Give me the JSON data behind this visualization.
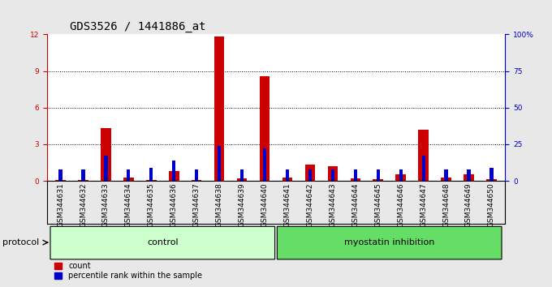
{
  "title": "GDS3526 / 1441886_at",
  "samples": [
    "GSM344631",
    "GSM344632",
    "GSM344633",
    "GSM344634",
    "GSM344635",
    "GSM344636",
    "GSM344637",
    "GSM344638",
    "GSM344639",
    "GSM344640",
    "GSM344641",
    "GSM344642",
    "GSM344643",
    "GSM344644",
    "GSM344645",
    "GSM344646",
    "GSM344647",
    "GSM344648",
    "GSM344649",
    "GSM344650"
  ],
  "count_values": [
    0.05,
    0.05,
    4.3,
    0.3,
    0.1,
    0.8,
    0.05,
    11.8,
    0.2,
    8.6,
    0.3,
    1.3,
    1.2,
    0.2,
    0.15,
    0.5,
    4.2,
    0.3,
    0.5,
    0.15
  ],
  "percentile_values": [
    8,
    8,
    17,
    8,
    9,
    14,
    8,
    24,
    8,
    22,
    8,
    8,
    8,
    8,
    8,
    8,
    17,
    8,
    8,
    9
  ],
  "ylim_left": [
    0,
    12
  ],
  "ylim_right": [
    0,
    100
  ],
  "yticks_left": [
    0,
    3,
    6,
    9,
    12
  ],
  "yticks_right": [
    0,
    25,
    50,
    75,
    100
  ],
  "ytick_labels_right": [
    "0",
    "25",
    "50",
    "75",
    "100%"
  ],
  "groups": [
    {
      "label": "control",
      "start": 0,
      "end": 10,
      "color": "#ccffcc"
    },
    {
      "label": "myostatin inhibition",
      "start": 10,
      "end": 20,
      "color": "#66dd66"
    }
  ],
  "group_row_label": "protocol",
  "bar_color_count": "#cc0000",
  "bar_color_percentile": "#0000cc",
  "bar_width": 0.45,
  "percentile_bar_width": 0.15,
  "background_color": "#e8e8e8",
  "plot_bg_color": "#ffffff",
  "grid_color": "#000000",
  "title_fontsize": 10,
  "tick_fontsize": 6.5,
  "label_fontsize": 8
}
